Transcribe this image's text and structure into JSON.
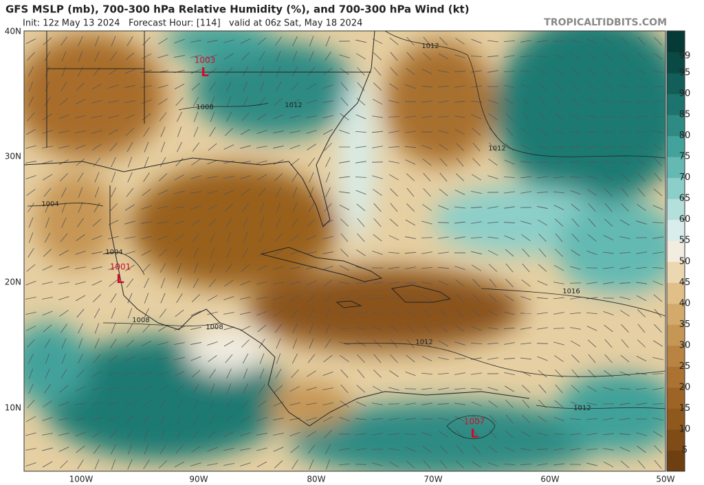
{
  "header": {
    "title": "GFS MSLP (mb), 700-300 hPa Relative Humidity (%), and 700-300 hPa Wind (kt)",
    "subtitle": "Init: 12z May 13 2024   Forecast Hour: [114]   valid at 06z Sat, May 18 2024",
    "brand": "TROPICALTIDBITS.COM"
  },
  "map": {
    "lat_labels": [
      "40N",
      "30N",
      "20N",
      "10N"
    ],
    "lon_labels": [
      "100W",
      "90W",
      "80W",
      "70W",
      "60W",
      "50W"
    ],
    "isobar_labels": [
      "1012",
      "1008",
      "1012",
      "1012",
      "1004",
      "1004",
      "1008",
      "1008",
      "1016",
      "1012",
      "1012"
    ],
    "lows": [
      {
        "pressure": "1003",
        "symbol": "L"
      },
      {
        "pressure": "1001",
        "symbol": "L"
      },
      {
        "pressure": "1007",
        "symbol": "L"
      }
    ]
  },
  "colorbar": {
    "ticks": [
      5,
      10,
      15,
      20,
      25,
      30,
      35,
      40,
      45,
      50,
      55,
      60,
      65,
      70,
      75,
      80,
      85,
      90,
      95,
      99
    ],
    "lim": [
      0,
      105
    ],
    "colors": [
      "#6e3f10",
      "#7f4b16",
      "#8f581d",
      "#9d6426",
      "#ab7232",
      "#b98341",
      "#c69654",
      "#d3aa6c",
      "#e0c088",
      "#ecd8b0",
      "#f3ede0",
      "#d9eeec",
      "#b4e0dc",
      "#8ccfc9",
      "#64bab3",
      "#43a29b",
      "#2d8b84",
      "#1d746e",
      "#125e58",
      "#0a4a45",
      "#063a36"
    ]
  }
}
